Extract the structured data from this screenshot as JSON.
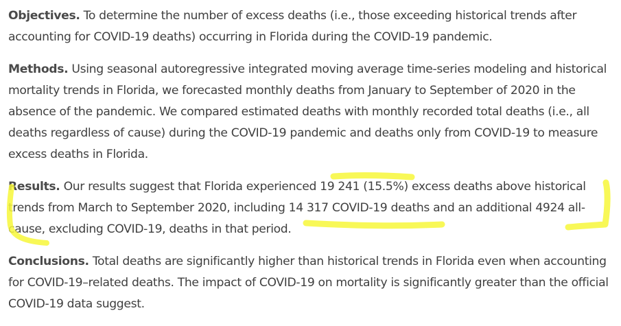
{
  "sections": [
    {
      "label": "Objectives.",
      "text": "To determine the number of excess deaths (i.e., those exceeding historical trends after accounting for COVID-19 deaths) occurring in Florida during the COVID-19 pandemic."
    },
    {
      "label": "Methods.",
      "text": "Using seasonal autoregressive integrated moving average time-series modeling and historical mortality trends in Florida, we forecasted monthly deaths from January to September of 2020 in the absence of the pandemic. We compared estimated deaths with monthly recorded total deaths (i.e., all deaths regardless of cause) during the COVID-19 pandemic and deaths only from COVID-19 to measure excess deaths in Florida."
    },
    {
      "label": "Results.",
      "text": "Our results suggest that Florida experienced 19 241 (15.5%) excess deaths above historical trends from March to September 2020, including 14 317 COVID-19 deaths and an additional 4924 all-cause, excluding COVID-19, deaths in that period."
    },
    {
      "label": "Conclusions.",
      "text": "Total deaths are significantly higher than historical trends in Florida even when accounting for COVID-19–related deaths. The impact of COVID-19 on mortality is significantly greater than the official COVID-19 data suggest."
    }
  ],
  "highlight_color": "#f7f73a"
}
